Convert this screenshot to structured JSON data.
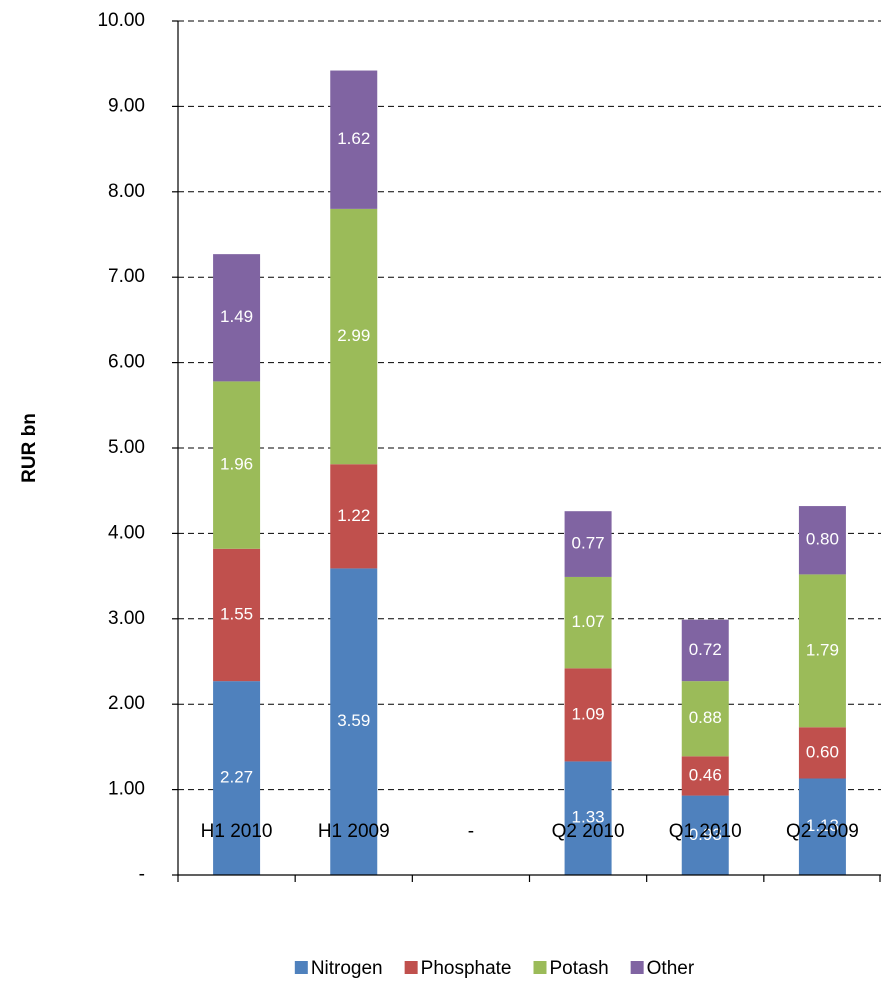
{
  "chart_data": {
    "type": "stacked_bar",
    "y_label": "RUR bn",
    "categories": [
      "H1 2010",
      "H1 2009",
      "-",
      "Q2 2010",
      "Q1 2010",
      "Q2 2009"
    ],
    "series": [
      {
        "name": "Nitrogen",
        "color": "#4f81bd",
        "values": [
          2.27,
          3.59,
          null,
          1.33,
          0.93,
          1.13
        ],
        "value_labels": [
          "2.27",
          "3.59",
          null,
          "1.33",
          "0.93",
          "1.13"
        ]
      },
      {
        "name": "Phosphate",
        "color": "#c0504d",
        "values": [
          1.55,
          1.22,
          null,
          1.09,
          0.46,
          0.6
        ],
        "value_labels": [
          "1.55",
          "1.22",
          null,
          "1.09",
          "0.46",
          "0.60"
        ]
      },
      {
        "name": "Potash",
        "color": "#9bbb59",
        "values": [
          1.96,
          2.99,
          null,
          1.07,
          0.88,
          1.79
        ],
        "value_labels": [
          "1.96",
          "2.99",
          null,
          "1.07",
          "0.88",
          "1.79"
        ]
      },
      {
        "name": "Other",
        "color": "#8064a2",
        "values": [
          1.49,
          1.62,
          null,
          0.77,
          0.72,
          0.8
        ],
        "value_labels": [
          "1.49",
          "1.62",
          null,
          "0.77",
          "0.72",
          "0.80"
        ]
      }
    ],
    "ylim": [
      0,
      10
    ],
    "yticks": [
      {
        "value": 0,
        "label": "-"
      },
      {
        "value": 1,
        "label": "1.00"
      },
      {
        "value": 2,
        "label": "2.00"
      },
      {
        "value": 3,
        "label": "3.00"
      },
      {
        "value": 4,
        "label": "4.00"
      },
      {
        "value": 5,
        "label": "5.00"
      },
      {
        "value": 6,
        "label": "6.00"
      },
      {
        "value": 7,
        "label": "7.00"
      },
      {
        "value": 8,
        "label": "8.00"
      },
      {
        "value": 9,
        "label": "9.00"
      },
      {
        "value": 10,
        "label": "10.00"
      }
    ],
    "grid": true,
    "legend": "bottom"
  }
}
